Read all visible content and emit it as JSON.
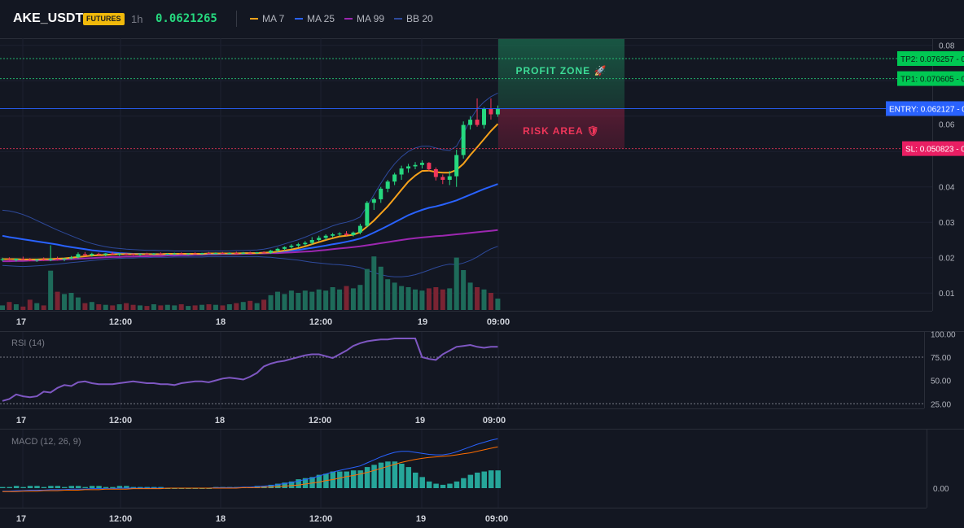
{
  "header": {
    "symbol": "AKE_USDT",
    "badge": "FUTURES",
    "timeframe": "1h",
    "last_price": "0.0621265",
    "indicators": [
      {
        "label": "MA 7",
        "color": "#f7a21b"
      },
      {
        "label": "MA 25",
        "color": "#2962ff"
      },
      {
        "label": "MA 99",
        "color": "#9c27b0"
      },
      {
        "label": "BB 20",
        "color": "#2e4a9c"
      }
    ]
  },
  "colors": {
    "bull": "#26d97f",
    "bear": "#f0365a",
    "vol_bull": "#1e6b5a",
    "vol_bear": "#7a2433",
    "ma7": "#f7a21b",
    "ma25": "#2962ff",
    "ma99": "#9c27b0",
    "bb": "#2e4a9c",
    "rsi": "#7e57c2",
    "macd": "#2962ff",
    "signal": "#ff6d00",
    "hist_pos": "#26a69a",
    "hist_neg": "#ef5350",
    "tp": "#26d97f",
    "sl": "#f0365a",
    "entry": "#2962ff"
  },
  "main_chart": {
    "y_ticks": [
      "0.08",
      "0.07",
      "0.06",
      "0.05",
      "0.04",
      "0.03",
      "0.02",
      "0.01"
    ],
    "x_ticks": [
      "17",
      "12:00",
      "18",
      "12:00",
      "19",
      "09:00"
    ],
    "zones": {
      "profit_label": "PROFIT ZONE 🚀",
      "risk_label": "RISK AREA 🛡"
    },
    "levels": [
      {
        "label": "TP2: 0.076257",
        "value": 0.076257,
        "kind": "tp"
      },
      {
        "label": "TP1: 0.070605",
        "value": 0.070605,
        "kind": "tp"
      },
      {
        "label": "ENTRY: 0.062127",
        "value": 0.062127,
        "kind": "entry"
      },
      {
        "label": "SL: 0.050823",
        "value": 0.050823,
        "kind": "sl"
      }
    ],
    "level_ticks": [
      "0.08",
      "0.07",
      "0.06",
      "0.05"
    ]
  },
  "rsi": {
    "title": "RSI (14)",
    "y_ticks": [
      "100.00",
      "75.00",
      "50.00",
      "25.00"
    ],
    "x_ticks": [
      "17",
      "12:00",
      "18",
      "12:00",
      "19",
      "09:00"
    ]
  },
  "macd": {
    "title": "MACD (12, 26, 9)",
    "y_ticks": [
      "0.00"
    ],
    "x_ticks": [
      "17",
      "12:00",
      "18",
      "12:00",
      "19",
      "09:00"
    ]
  },
  "chart_data": {
    "type": "candlestick",
    "interval": "1h",
    "candles": [
      [
        0.0194,
        0.02,
        0.019,
        0.0196
      ],
      [
        0.0196,
        0.0201,
        0.0192,
        0.0193
      ],
      [
        0.0193,
        0.0198,
        0.0189,
        0.0197
      ],
      [
        0.0197,
        0.0203,
        0.0193,
        0.0195
      ],
      [
        0.0195,
        0.0199,
        0.019,
        0.0192
      ],
      [
        0.0192,
        0.0197,
        0.0188,
        0.0195
      ],
      [
        0.0195,
        0.0201,
        0.0191,
        0.0193
      ],
      [
        0.0193,
        0.0235,
        0.019,
        0.0197
      ],
      [
        0.0197,
        0.0203,
        0.0192,
        0.0195
      ],
      [
        0.0195,
        0.0199,
        0.019,
        0.0198
      ],
      [
        0.0198,
        0.0205,
        0.0195,
        0.0201
      ],
      [
        0.0201,
        0.0215,
        0.0197,
        0.021
      ],
      [
        0.021,
        0.0216,
        0.0204,
        0.0207
      ],
      [
        0.0207,
        0.0214,
        0.0203,
        0.0211
      ],
      [
        0.0211,
        0.0214,
        0.0206,
        0.0208
      ],
      [
        0.0208,
        0.0213,
        0.0204,
        0.0212
      ],
      [
        0.0212,
        0.0216,
        0.0207,
        0.0209
      ],
      [
        0.0209,
        0.0213,
        0.0205,
        0.0211
      ],
      [
        0.0211,
        0.0214,
        0.0207,
        0.021
      ],
      [
        0.021,
        0.0213,
        0.0206,
        0.0209
      ],
      [
        0.0209,
        0.0212,
        0.0205,
        0.0211
      ],
      [
        0.0211,
        0.0214,
        0.0207,
        0.021
      ],
      [
        0.021,
        0.0213,
        0.0207,
        0.0212
      ],
      [
        0.0212,
        0.0215,
        0.0208,
        0.021
      ],
      [
        0.021,
        0.0213,
        0.0207,
        0.0211
      ],
      [
        0.0211,
        0.0214,
        0.0208,
        0.0212
      ],
      [
        0.0212,
        0.0215,
        0.0209,
        0.021
      ],
      [
        0.021,
        0.0213,
        0.0207,
        0.0212
      ],
      [
        0.0212,
        0.0215,
        0.0209,
        0.0211
      ],
      [
        0.0211,
        0.0214,
        0.0208,
        0.0213
      ],
      [
        0.0213,
        0.0216,
        0.021,
        0.0212
      ],
      [
        0.0212,
        0.0215,
        0.0209,
        0.0213
      ],
      [
        0.0213,
        0.0216,
        0.021,
        0.0212
      ],
      [
        0.0212,
        0.0215,
        0.0209,
        0.0213
      ],
      [
        0.0213,
        0.0217,
        0.021,
        0.0212
      ],
      [
        0.0212,
        0.0216,
        0.0209,
        0.0214
      ],
      [
        0.0214,
        0.0217,
        0.0211,
        0.0213
      ],
      [
        0.0213,
        0.0216,
        0.021,
        0.0215
      ],
      [
        0.0215,
        0.0218,
        0.0212,
        0.0214
      ],
      [
        0.0214,
        0.0222,
        0.0211,
        0.022
      ],
      [
        0.022,
        0.0228,
        0.0216,
        0.0225
      ],
      [
        0.0225,
        0.0232,
        0.022,
        0.023
      ],
      [
        0.023,
        0.0238,
        0.0226,
        0.0234
      ],
      [
        0.0234,
        0.0242,
        0.0229,
        0.0238
      ],
      [
        0.0238,
        0.0247,
        0.0233,
        0.0242
      ],
      [
        0.0242,
        0.0258,
        0.0237,
        0.025
      ],
      [
        0.025,
        0.0262,
        0.0246,
        0.0256
      ],
      [
        0.0256,
        0.0266,
        0.025,
        0.0262
      ],
      [
        0.0262,
        0.027,
        0.0257,
        0.0266
      ],
      [
        0.0266,
        0.0272,
        0.0261,
        0.0268
      ],
      [
        0.0268,
        0.0275,
        0.0262,
        0.0264
      ],
      [
        0.0264,
        0.0274,
        0.026,
        0.0271
      ],
      [
        0.0271,
        0.0296,
        0.0266,
        0.029
      ],
      [
        0.029,
        0.036,
        0.0286,
        0.0355
      ],
      [
        0.0355,
        0.037,
        0.0335,
        0.0365
      ],
      [
        0.0365,
        0.04,
        0.0355,
        0.0395
      ],
      [
        0.0395,
        0.042,
        0.0385,
        0.0415
      ],
      [
        0.0415,
        0.044,
        0.0405,
        0.0435
      ],
      [
        0.0435,
        0.046,
        0.042,
        0.0452
      ],
      [
        0.0452,
        0.0465,
        0.044,
        0.0458
      ],
      [
        0.0458,
        0.047,
        0.045,
        0.0462
      ],
      [
        0.0462,
        0.0475,
        0.0452,
        0.0468
      ],
      [
        0.0468,
        0.047,
        0.0445,
        0.045
      ],
      [
        0.045,
        0.0455,
        0.0418,
        0.0428
      ],
      [
        0.0428,
        0.0435,
        0.0408,
        0.042
      ],
      [
        0.042,
        0.0445,
        0.0405,
        0.043
      ],
      [
        0.043,
        0.0505,
        0.04,
        0.049
      ],
      [
        0.049,
        0.0585,
        0.048,
        0.0575
      ],
      [
        0.0575,
        0.06,
        0.0562,
        0.059
      ],
      [
        0.059,
        0.065,
        0.057,
        0.0575
      ],
      [
        0.0575,
        0.0625,
        0.0565,
        0.062
      ],
      [
        0.062,
        0.065,
        0.059,
        0.0605
      ],
      [
        0.0605,
        0.063,
        0.0598,
        0.0621
      ]
    ],
    "volume_relative": [
      0.08,
      0.14,
      0.1,
      0.06,
      0.18,
      0.12,
      0.08,
      0.69,
      0.32,
      0.28,
      0.3,
      0.22,
      0.12,
      0.14,
      0.1,
      0.09,
      0.08,
      0.1,
      0.12,
      0.09,
      0.08,
      0.07,
      0.1,
      0.08,
      0.09,
      0.08,
      0.1,
      0.07,
      0.08,
      0.09,
      0.1,
      0.09,
      0.08,
      0.1,
      0.12,
      0.14,
      0.16,
      0.12,
      0.18,
      0.26,
      0.32,
      0.28,
      0.34,
      0.3,
      0.34,
      0.32,
      0.36,
      0.34,
      0.4,
      0.36,
      0.42,
      0.38,
      0.44,
      0.72,
      0.94,
      0.76,
      0.54,
      0.48,
      0.42,
      0.4,
      0.36,
      0.34,
      0.38,
      0.4,
      0.36,
      0.38,
      0.92,
      0.7,
      0.48,
      0.4,
      0.36,
      0.3,
      0.2
    ],
    "ma7": [
      0.0196,
      0.0196,
      0.0196,
      0.0195,
      0.0195,
      0.0195,
      0.0196,
      0.0196,
      0.0197,
      0.0198,
      0.02,
      0.0202,
      0.0204,
      0.0206,
      0.0207,
      0.0208,
      0.0209,
      0.021,
      0.021,
      0.021,
      0.021,
      0.021,
      0.021,
      0.021,
      0.0211,
      0.0211,
      0.0211,
      0.0211,
      0.0211,
      0.0211,
      0.0212,
      0.0212,
      0.0212,
      0.0212,
      0.0212,
      0.0213,
      0.0213,
      0.0213,
      0.0214,
      0.0215,
      0.0217,
      0.022,
      0.0223,
      0.0227,
      0.0232,
      0.0238,
      0.0244,
      0.025,
      0.0255,
      0.026,
      0.0262,
      0.0265,
      0.0272,
      0.0288,
      0.0305,
      0.0325,
      0.0345,
      0.0368,
      0.0392,
      0.0415,
      0.0432,
      0.0445,
      0.0446,
      0.0442,
      0.044,
      0.044,
      0.0448,
      0.0465,
      0.049,
      0.0512,
      0.0535,
      0.0558,
      0.0578
    ],
    "ma25": [
      0.0262,
      0.0258,
      0.0255,
      0.0252,
      0.0249,
      0.0246,
      0.0243,
      0.024,
      0.0237,
      0.0233,
      0.023,
      0.0227,
      0.0224,
      0.0221,
      0.0219,
      0.0217,
      0.0215,
      0.0213,
      0.0212,
      0.0211,
      0.0211,
      0.021,
      0.021,
      0.021,
      0.021,
      0.021,
      0.021,
      0.021,
      0.021,
      0.021,
      0.021,
      0.0211,
      0.0211,
      0.0211,
      0.0212,
      0.0212,
      0.0213,
      0.0213,
      0.0214,
      0.0215,
      0.0216,
      0.0218,
      0.022,
      0.0222,
      0.0225,
      0.0228,
      0.0231,
      0.0234,
      0.0238,
      0.0241,
      0.0245,
      0.0249,
      0.0254,
      0.0262,
      0.0271,
      0.028,
      0.029,
      0.03,
      0.031,
      0.032,
      0.0328,
      0.0335,
      0.0341,
      0.0345,
      0.035,
      0.0356,
      0.0362,
      0.037,
      0.0378,
      0.0386,
      0.0394,
      0.0401,
      0.0408
    ],
    "ma99": [
      0.019,
      0.019,
      0.0191,
      0.0191,
      0.0192,
      0.0192,
      0.0193,
      0.0193,
      0.0194,
      0.0195,
      0.0196,
      0.0197,
      0.0198,
      0.0199,
      0.02,
      0.0201,
      0.0202,
      0.0202,
      0.0203,
      0.0203,
      0.0204,
      0.0204,
      0.0205,
      0.0205,
      0.0206,
      0.0206,
      0.0207,
      0.0207,
      0.0208,
      0.0208,
      0.0209,
      0.0209,
      0.021,
      0.021,
      0.021,
      0.0211,
      0.0211,
      0.0212,
      0.0212,
      0.0213,
      0.0213,
      0.0214,
      0.0215,
      0.0216,
      0.0217,
      0.0218,
      0.022,
      0.0222,
      0.0224,
      0.0226,
      0.0228,
      0.023,
      0.0232,
      0.0235,
      0.0238,
      0.0241,
      0.0244,
      0.0247,
      0.025,
      0.0253,
      0.0255,
      0.0257,
      0.0259,
      0.0261,
      0.0262,
      0.0264,
      0.0266,
      0.0268,
      0.027,
      0.0272,
      0.0274,
      0.0276,
      0.0278
    ],
    "bb_upper": [
      0.0334,
      0.0332,
      0.0328,
      0.0322,
      0.0314,
      0.0305,
      0.0296,
      0.0287,
      0.0278,
      0.027,
      0.0262,
      0.0254,
      0.0246,
      0.024,
      0.0235,
      0.0231,
      0.0228,
      0.0226,
      0.0224,
      0.0223,
      0.0222,
      0.0221,
      0.0221,
      0.022,
      0.022,
      0.0219,
      0.0219,
      0.0219,
      0.0219,
      0.0219,
      0.0219,
      0.0219,
      0.0219,
      0.0219,
      0.022,
      0.022,
      0.0221,
      0.0222,
      0.0224,
      0.0228,
      0.0233,
      0.0239,
      0.0245,
      0.0251,
      0.0258,
      0.0266,
      0.0274,
      0.0282,
      0.029,
      0.0296,
      0.03,
      0.0306,
      0.0315,
      0.0345,
      0.0378,
      0.041,
      0.044,
      0.0465,
      0.0485,
      0.05,
      0.051,
      0.0515,
      0.0515,
      0.051,
      0.0505,
      0.0503,
      0.0515,
      0.055,
      0.059,
      0.062,
      0.064,
      0.0655,
      0.0665
    ],
    "bb_lower": [
      0.0178,
      0.0177,
      0.0176,
      0.0175,
      0.0176,
      0.0177,
      0.0178,
      0.018,
      0.0182,
      0.0184,
      0.0186,
      0.0188,
      0.019,
      0.0192,
      0.0194,
      0.0196,
      0.0197,
      0.0198,
      0.0199,
      0.0199,
      0.02,
      0.02,
      0.0201,
      0.0201,
      0.0201,
      0.0202,
      0.0202,
      0.0202,
      0.0202,
      0.0202,
      0.0203,
      0.0203,
      0.0203,
      0.0203,
      0.0203,
      0.0203,
      0.0203,
      0.0203,
      0.0202,
      0.0201,
      0.0199,
      0.0197,
      0.0195,
      0.0193,
      0.019,
      0.0187,
      0.0185,
      0.0183,
      0.0181,
      0.018,
      0.0178,
      0.0176,
      0.0172,
      0.0165,
      0.0158,
      0.0152,
      0.0148,
      0.0146,
      0.0146,
      0.0148,
      0.0152,
      0.0158,
      0.0165,
      0.0172,
      0.0178,
      0.0182,
      0.018,
      0.0185,
      0.0192,
      0.0202,
      0.0214,
      0.0225,
      0.0232
    ],
    "rsi_values": [
      28,
      30,
      35,
      33,
      32,
      33,
      38,
      37,
      42,
      45,
      44,
      48,
      49,
      47,
      46,
      46,
      46,
      47,
      48,
      49,
      48,
      47,
      47,
      46,
      46,
      45,
      47,
      48,
      49,
      49,
      48,
      50,
      52,
      53,
      52,
      51,
      54,
      58,
      65,
      68,
      70,
      71,
      73,
      75,
      77,
      78,
      78,
      76,
      74,
      78,
      82,
      87,
      90,
      92,
      93,
      94,
      94,
      95,
      95,
      95,
      95,
      75,
      73,
      72,
      78,
      82,
      86,
      87,
      88,
      86,
      85,
      86,
      86
    ],
    "macd_line": [
      -0.0006,
      -0.0006,
      -0.0005,
      -0.0005,
      -0.0004,
      -0.0004,
      -0.0004,
      -0.0003,
      -0.0003,
      -0.0003,
      -0.0002,
      -0.0002,
      -0.0002,
      -0.0001,
      -0.0001,
      -0.0001,
      -0.0001,
      0.0,
      0.0,
      0.0,
      0.0,
      0.0,
      0.0,
      0.0,
      0.0,
      0.0,
      0.0,
      0.0,
      0.0,
      0.0,
      0.0,
      0.0001,
      0.0001,
      0.0001,
      0.0001,
      0.0002,
      0.0002,
      0.0003,
      0.0004,
      0.0005,
      0.0007,
      0.0009,
      0.0011,
      0.0014,
      0.0017,
      0.002,
      0.0024,
      0.0028,
      0.0032,
      0.0035,
      0.0038,
      0.0041,
      0.0044,
      0.005,
      0.0056,
      0.0062,
      0.0067,
      0.0071,
      0.0073,
      0.0073,
      0.0071,
      0.0069,
      0.0067,
      0.0066,
      0.0066,
      0.0068,
      0.0072,
      0.0077,
      0.0082,
      0.0087,
      0.0091,
      0.0095,
      0.0098
    ],
    "signal_line": [
      -0.0007,
      -0.0007,
      -0.0007,
      -0.0006,
      -0.0006,
      -0.0006,
      -0.0005,
      -0.0005,
      -0.0005,
      -0.0004,
      -0.0004,
      -0.0004,
      -0.0003,
      -0.0003,
      -0.0003,
      -0.0002,
      -0.0002,
      -0.0002,
      -0.0002,
      -0.0001,
      -0.0001,
      -0.0001,
      -0.0001,
      -0.0001,
      0.0,
      0.0,
      0.0,
      0.0,
      0.0,
      0.0,
      0.0,
      0.0,
      0.0,
      0.0,
      0.0,
      0.0001,
      0.0001,
      0.0001,
      0.0002,
      0.0002,
      0.0003,
      0.0004,
      0.0005,
      0.0006,
      0.0008,
      0.001,
      0.0012,
      0.0015,
      0.0017,
      0.002,
      0.0023,
      0.0025,
      0.0028,
      0.0031,
      0.0035,
      0.0039,
      0.0043,
      0.0047,
      0.0051,
      0.0054,
      0.0057,
      0.0059,
      0.0061,
      0.0062,
      0.0063,
      0.0064,
      0.0066,
      0.0068,
      0.007,
      0.0073,
      0.0076,
      0.0079,
      0.0082
    ],
    "rsi_overbought": 70,
    "rsi_oversold": 30,
    "price_ylim": [
      0.005,
      0.082
    ],
    "rsi_ylim": [
      20,
      102
    ]
  }
}
